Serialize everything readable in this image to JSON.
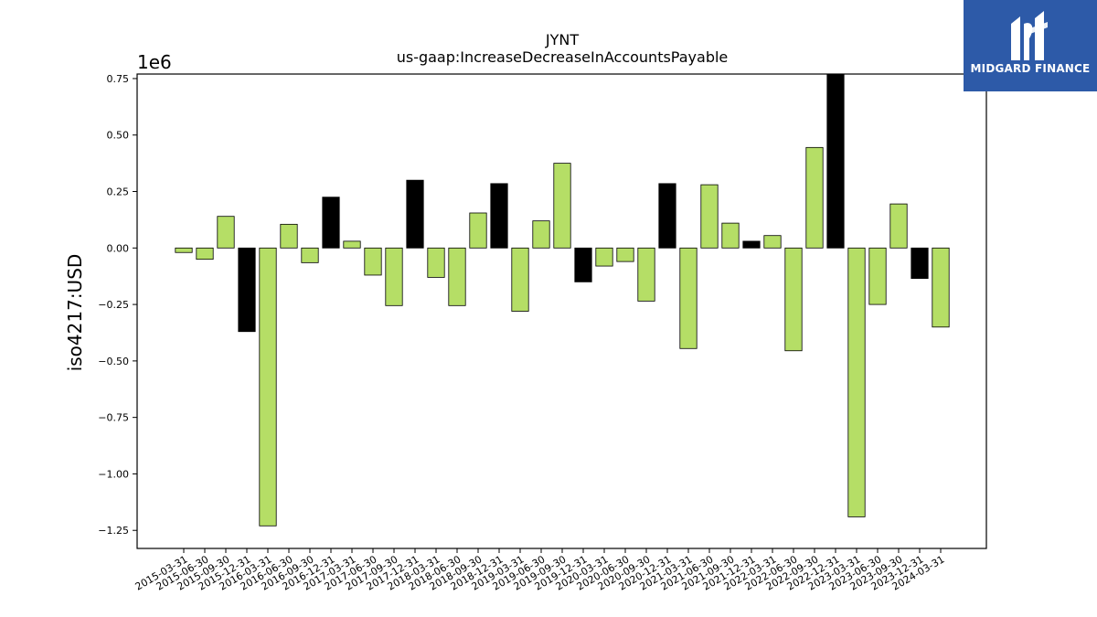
{
  "chart_data": {
    "type": "bar",
    "title": "JYNT",
    "subtitle": "us-gaap:IncreaseDecreaseInAccountsPayable",
    "ylabel": "iso4217:USD",
    "xlabel": "",
    "offset_label": "1e6",
    "scale": 1000000,
    "ylim": [
      -1.33,
      0.77
    ],
    "yticks": [
      0.75,
      0.5,
      0.25,
      0.0,
      -0.25,
      -0.5,
      -0.75,
      -1.0,
      -1.25
    ],
    "ytick_labels": [
      "0.75",
      "0.50",
      "0.25",
      "0.00",
      "−0.25",
      "−0.50",
      "−0.75",
      "−1.00",
      "−1.25"
    ],
    "categories": [
      "2015-03-31",
      "2015-06-30",
      "2015-09-30",
      "2015-12-31",
      "2016-03-31",
      "2016-06-30",
      "2016-09-30",
      "2016-12-31",
      "2017-03-31",
      "2017-06-30",
      "2017-09-30",
      "2017-12-31",
      "2018-03-31",
      "2018-06-30",
      "2018-09-30",
      "2018-12-31",
      "2019-03-31",
      "2019-06-30",
      "2019-09-30",
      "2019-12-31",
      "2020-03-31",
      "2020-06-30",
      "2020-09-30",
      "2020-12-31",
      "2021-03-31",
      "2021-06-30",
      "2021-09-30",
      "2021-12-31",
      "2022-03-31",
      "2022-06-30",
      "2022-09-30",
      "2022-12-31",
      "2023-03-31",
      "2023-06-30",
      "2023-09-30",
      "2023-12-31",
      "2024-03-31"
    ],
    "values": [
      -0.02,
      -0.05,
      0.14,
      -0.37,
      -1.23,
      0.105,
      -0.065,
      0.225,
      0.03,
      -0.12,
      -0.255,
      0.3,
      -0.13,
      -0.255,
      0.155,
      0.285,
      -0.28,
      0.12,
      0.375,
      -0.15,
      -0.08,
      -0.06,
      -0.235,
      0.285,
      -0.445,
      0.28,
      0.11,
      0.03,
      0.055,
      -0.455,
      0.445,
      0.77,
      -1.19,
      -0.25,
      0.195,
      -0.135,
      -0.35
    ],
    "highlight": [
      false,
      false,
      false,
      true,
      false,
      false,
      false,
      true,
      false,
      false,
      false,
      true,
      false,
      false,
      false,
      true,
      false,
      false,
      false,
      true,
      false,
      false,
      false,
      true,
      false,
      false,
      false,
      true,
      false,
      false,
      false,
      true,
      false,
      false,
      false,
      true,
      false
    ],
    "colors": {
      "bar": "#b5de66",
      "highlight": "#000000",
      "edge": "#000000"
    },
    "grid": false,
    "legend": "none"
  },
  "logo": {
    "text": "MIDGARD FINANCE",
    "bg": "#2d5aa8"
  }
}
